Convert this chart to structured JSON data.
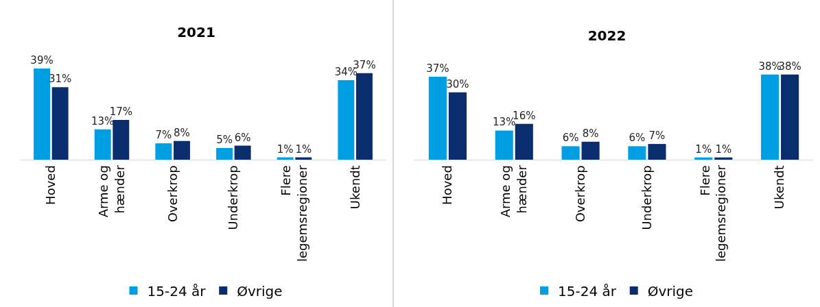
{
  "chart_data": [
    {
      "type": "bar",
      "title": "2021",
      "categories": [
        "Hoved",
        "Arme og hænder",
        "Overkrop",
        "Underkrop",
        "Flere legemsregioner",
        "Ukendt"
      ],
      "legend": "bottom",
      "grid": false,
      "series": [
        {
          "name": "15-24 år",
          "color": "#009fe3",
          "values": [
            39,
            13,
            7,
            5,
            1,
            34
          ],
          "value_labels": [
            "39%",
            "13%",
            "7%",
            "5%",
            "1%",
            "34%"
          ]
        },
        {
          "name": "Øvrige",
          "color": "#0a2d6e",
          "values": [
            31,
            17,
            8,
            6,
            1,
            37
          ],
          "value_labels": [
            "31%",
            "17%",
            "8%",
            "6%",
            "1%",
            "37%"
          ]
        }
      ]
    },
    {
      "type": "bar",
      "title": "2022",
      "categories": [
        "Hoved",
        "Arme og hænder",
        "Overkrop",
        "Underkrop",
        "Flere legemsregioner",
        "Ukendt"
      ],
      "legend": "bottom",
      "grid": false,
      "series": [
        {
          "name": "15-24 år",
          "color": "#009fe3",
          "values": [
            37,
            13,
            6,
            6,
            1,
            38
          ],
          "value_labels": [
            "37%",
            "13%",
            "6%",
            "6%",
            "1%",
            "38%"
          ]
        },
        {
          "name": "Øvrige",
          "color": "#0a2d6e",
          "values": [
            30,
            16,
            8,
            7,
            1,
            38
          ],
          "value_labels": [
            "30%",
            "16%",
            "8%",
            "7%",
            "1%",
            "38%"
          ]
        }
      ]
    }
  ]
}
